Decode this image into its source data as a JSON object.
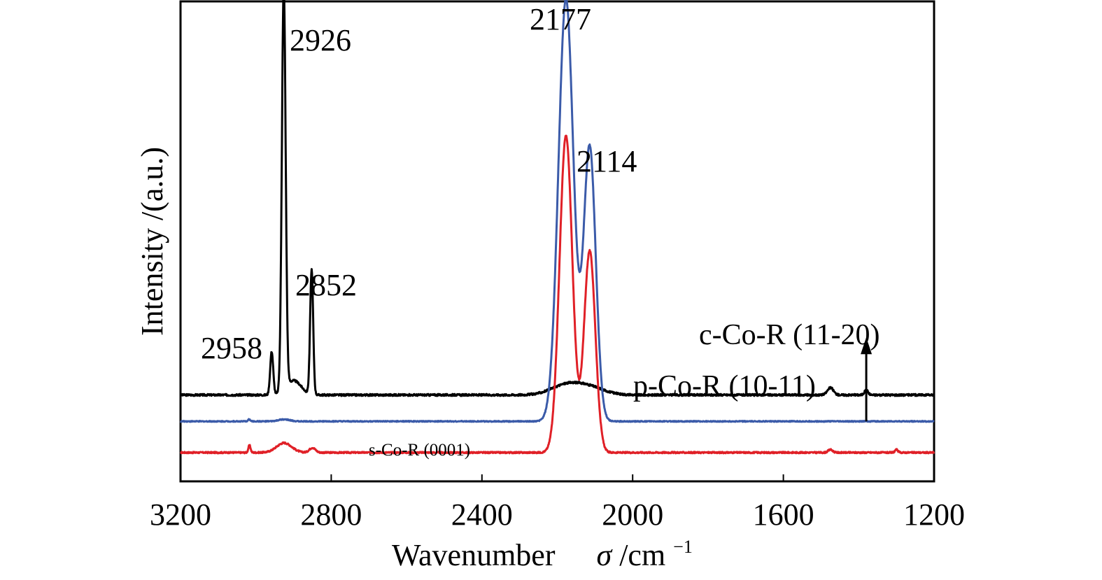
{
  "chart_data": {
    "type": "line",
    "title": "",
    "xlabel_text": "Wavenumber",
    "xlabel_symbol": "σ",
    "xlabel_unit": " /cm",
    "xlabel_exp": "−1",
    "ylabel": "Intensity /(a.u.)",
    "xlim": [
      3200,
      1200
    ],
    "x_reversed": true,
    "x_ticks": [
      3200,
      2800,
      2400,
      2000,
      1600,
      1200
    ],
    "y_ticks_shown": false,
    "grid": false,
    "series": [
      {
        "name": "c-Co-R (11-20)",
        "color": "#000000",
        "baseline": 0.18,
        "noise_amp": 0.004,
        "peaks": [
          {
            "x": 2958,
            "h": 0.09,
            "w": 4
          },
          {
            "x": 2926,
            "h": 0.84,
            "w": 5
          },
          {
            "x": 2900,
            "h": 0.03,
            "w": 20
          },
          {
            "x": 2852,
            "h": 0.26,
            "w": 4
          },
          {
            "x": 2177,
            "h": 0.02,
            "w": 40
          },
          {
            "x": 2114,
            "h": 0.015,
            "w": 40
          },
          {
            "x": 1475,
            "h": 0.015,
            "w": 8
          },
          {
            "x": 1380,
            "h": 0.01,
            "w": 5
          }
        ]
      },
      {
        "name": "p-Co-R (10-11)",
        "color": "#3b5ba9",
        "baseline": 0.125,
        "noise_amp": 0.002,
        "dip": {
          "x": 2145,
          "depth": 0.1,
          "w": 4
        },
        "peaks": [
          {
            "x": 3018,
            "h": 0.004,
            "w": 3
          },
          {
            "x": 2925,
            "h": 0.004,
            "w": 15
          },
          {
            "x": 2177,
            "h": 0.88,
            "w": 20
          },
          {
            "x": 2114,
            "h": 0.57,
            "w": 16
          }
        ]
      },
      {
        "name": "s-Co-R (0001)",
        "color": "#e02027",
        "baseline": 0.06,
        "noise_amp": 0.003,
        "dip": {
          "x": 2145,
          "depth": 0.07,
          "w": 3.5
        },
        "peaks": [
          {
            "x": 3017,
            "h": 0.015,
            "w": 3
          },
          {
            "x": 2925,
            "h": 0.02,
            "w": 20
          },
          {
            "x": 2850,
            "h": 0.01,
            "w": 8
          },
          {
            "x": 2177,
            "h": 0.66,
            "w": 17
          },
          {
            "x": 2114,
            "h": 0.42,
            "w": 15
          },
          {
            "x": 1475,
            "h": 0.006,
            "w": 6
          },
          {
            "x": 1300,
            "h": 0.006,
            "w": 4
          }
        ]
      }
    ],
    "peak_annotations": [
      "2958",
      "2926",
      "2852",
      "2177",
      "2114"
    ],
    "arrow": {
      "x": 1380,
      "from": 0.125,
      "to": 0.3,
      "color": "#000000"
    }
  }
}
